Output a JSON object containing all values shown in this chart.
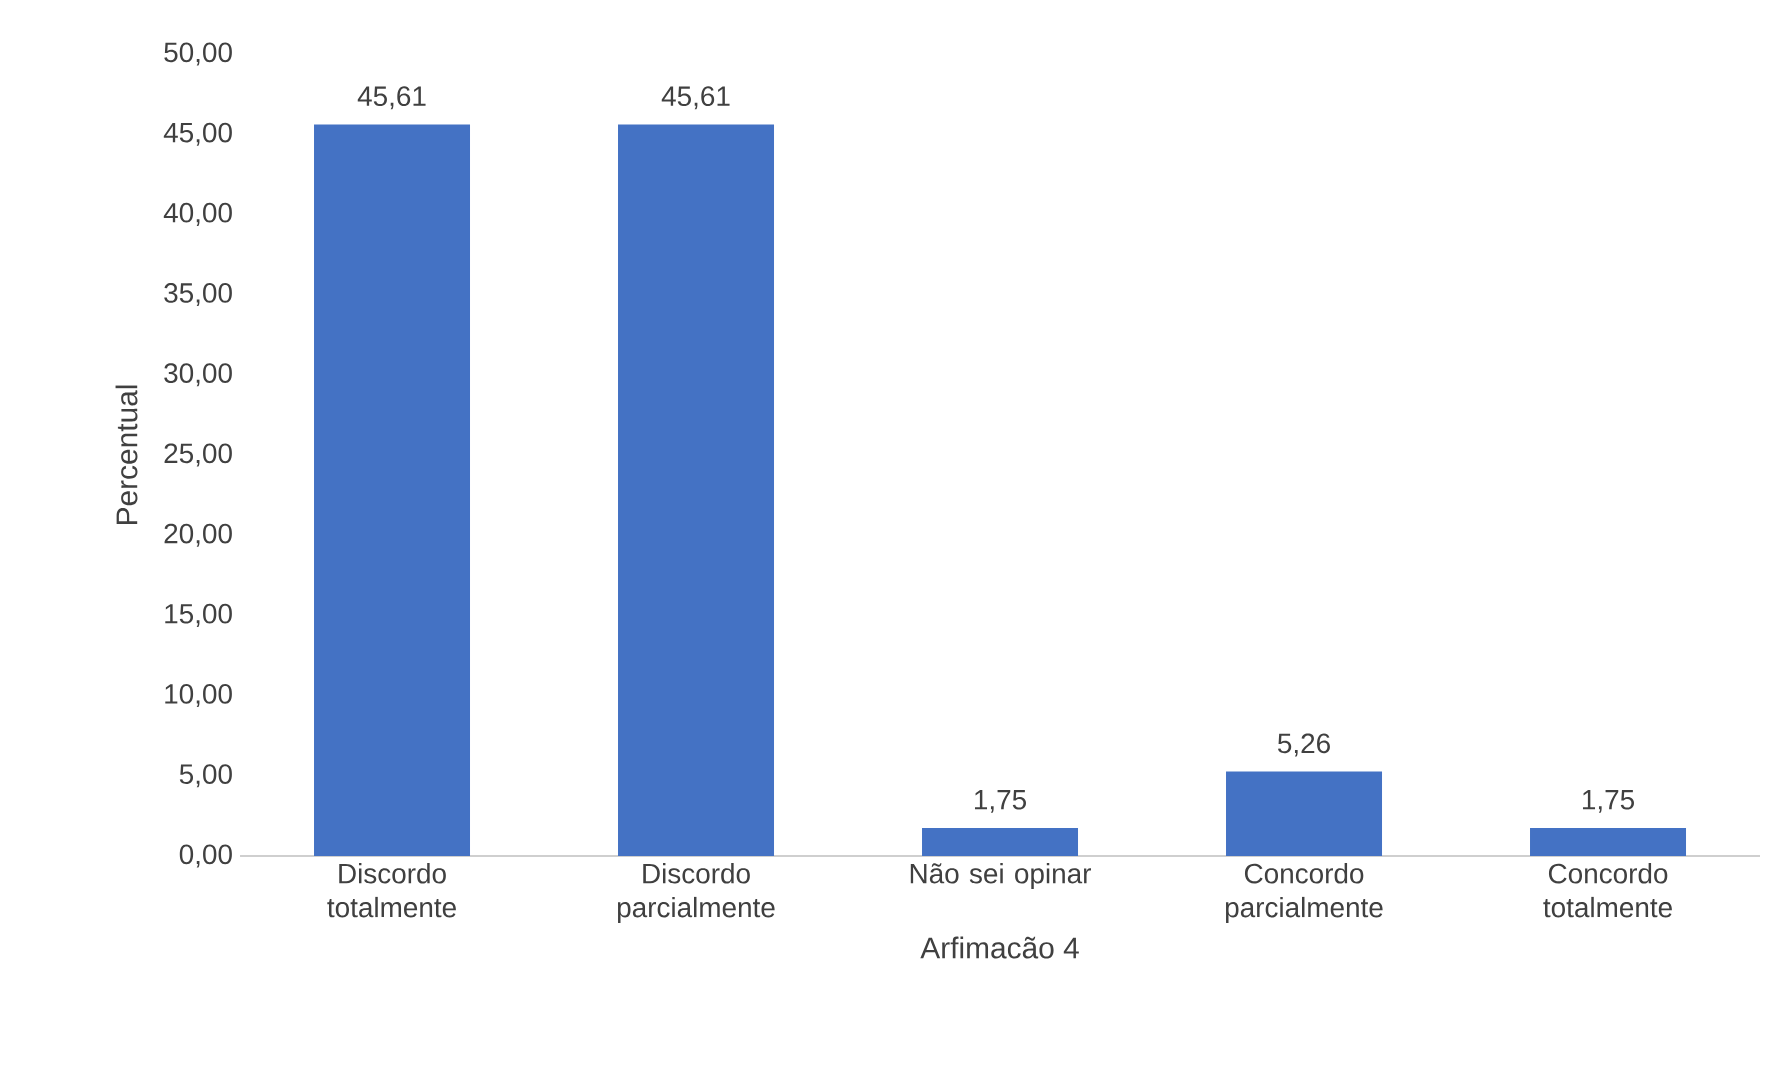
{
  "chart_data": {
    "type": "bar",
    "xlabel": "Arfimacão 4",
    "ylabel": "Percentual",
    "categories": [
      "Discordo totalmente",
      "Discordo parcialmente",
      "Não sei opinar",
      "Concordo parcialmente",
      "Concordo totalmente"
    ],
    "values": [
      45.61,
      45.61,
      1.75,
      5.26,
      1.75
    ],
    "value_labels": [
      "45,61",
      "45,61",
      "1,75",
      "5,26",
      "1,75"
    ],
    "color": "#4472c4",
    "ylim": [
      0,
      50
    ],
    "yticks": [
      {
        "value": 0,
        "label": "0,00"
      },
      {
        "value": 5,
        "label": "5,00"
      },
      {
        "value": 10,
        "label": "10,00"
      },
      {
        "value": 15,
        "label": "15,00"
      },
      {
        "value": 20,
        "label": "20,00"
      },
      {
        "value": 25,
        "label": "25,00"
      },
      {
        "value": 30,
        "label": "30,00"
      },
      {
        "value": 35,
        "label": "35,00"
      },
      {
        "value": 40,
        "label": "40,00"
      },
      {
        "value": 45,
        "label": "45,00"
      },
      {
        "value": 50,
        "label": "50,00"
      }
    ]
  }
}
